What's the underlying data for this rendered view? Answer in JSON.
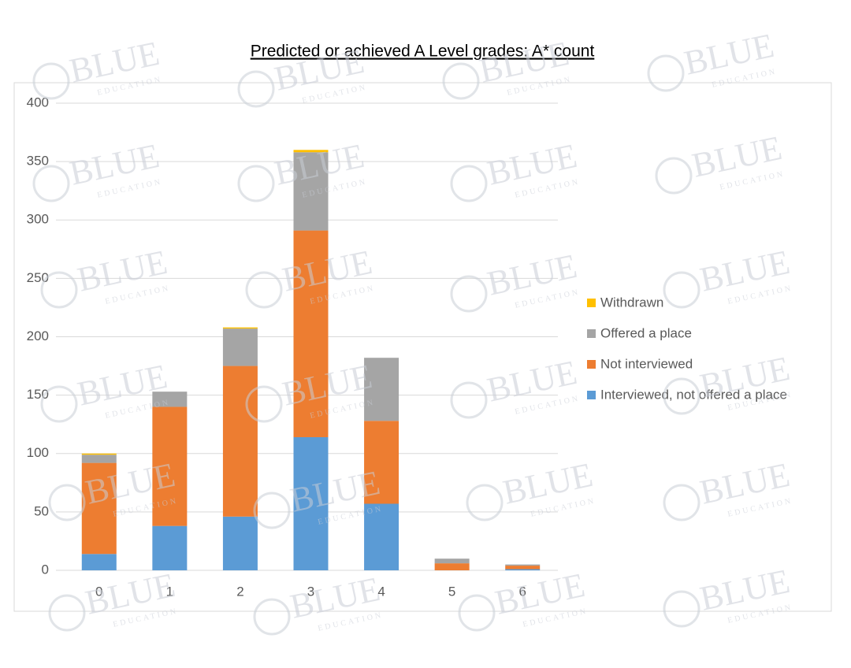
{
  "chart_data": {
    "type": "stacked_bar",
    "title": "Predicted or achieved A Level grades: A* count",
    "categories": [
      "0",
      "1",
      "2",
      "3",
      "4",
      "5",
      "6"
    ],
    "series": [
      {
        "name": "Interviewed, not offered a place",
        "color": "#5b9bd5",
        "values": [
          14,
          38,
          46,
          114,
          57,
          0,
          1
        ]
      },
      {
        "name": "Not interviewed",
        "color": "#ed7d31",
        "values": [
          78,
          102,
          129,
          177,
          71,
          6,
          3
        ]
      },
      {
        "name": "Offered a place",
        "color": "#a5a5a5",
        "values": [
          7,
          13,
          32,
          67,
          54,
          4,
          1
        ]
      },
      {
        "name": "Withdrawn",
        "color": "#ffc000",
        "values": [
          1,
          0,
          1,
          2,
          0,
          0,
          0
        ]
      }
    ],
    "ylim": [
      0,
      400
    ],
    "yticks": [
      0,
      50,
      100,
      150,
      200,
      250,
      300,
      350,
      400
    ],
    "grid": true,
    "legend": "right"
  },
  "watermark": [
    "BLUE",
    "EDUCATION"
  ]
}
